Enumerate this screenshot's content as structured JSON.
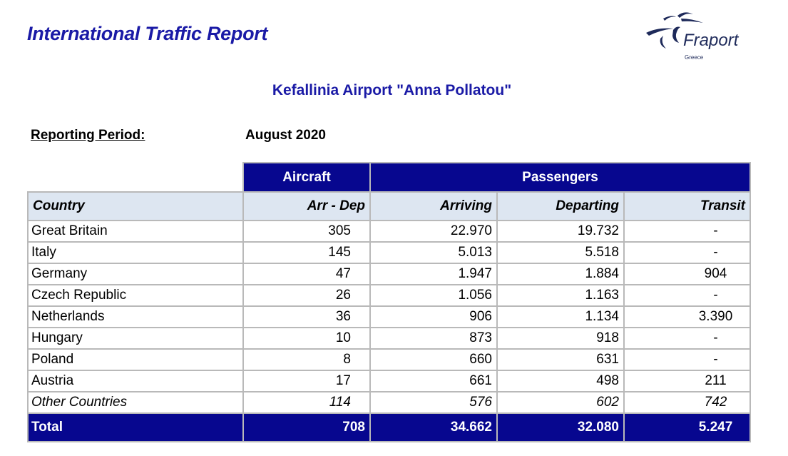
{
  "report": {
    "title": "International Traffic Report",
    "airport": "Kefallinia Airport \"Anna Pollatou\"",
    "period_label": "Reporting Period:",
    "period_value": "August 2020"
  },
  "logo": {
    "name": "Fraport",
    "sub": "Greece",
    "colors": {
      "navy": "#1e2a5a"
    }
  },
  "table": {
    "groups": {
      "aircraft": "Aircraft",
      "passengers": "Passengers"
    },
    "headers": {
      "country": "Country",
      "arr_dep": "Arr - Dep",
      "arriving": "Arriving",
      "departing": "Departing",
      "transit": "Transit"
    },
    "rows": [
      {
        "country": "Great Britain",
        "arr_dep": "305",
        "arriving": "22.970",
        "departing": "19.732",
        "transit": "-"
      },
      {
        "country": "Italy",
        "arr_dep": "145",
        "arriving": "5.013",
        "departing": "5.518",
        "transit": "-"
      },
      {
        "country": "Germany",
        "arr_dep": "47",
        "arriving": "1.947",
        "departing": "1.884",
        "transit": "904"
      },
      {
        "country": "Czech Republic",
        "arr_dep": "26",
        "arriving": "1.056",
        "departing": "1.163",
        "transit": "-"
      },
      {
        "country": "Netherlands",
        "arr_dep": "36",
        "arriving": "906",
        "departing": "1.134",
        "transit": "3.390"
      },
      {
        "country": "Hungary",
        "arr_dep": "10",
        "arriving": "873",
        "departing": "918",
        "transit": "-"
      },
      {
        "country": "Poland",
        "arr_dep": "8",
        "arriving": "660",
        "departing": "631",
        "transit": "-"
      },
      {
        "country": "Austria",
        "arr_dep": "17",
        "arriving": "661",
        "departing": "498",
        "transit": "211"
      }
    ],
    "other": {
      "country": "Other Countries",
      "arr_dep": "114",
      "arriving": "576",
      "departing": "602",
      "transit": "742"
    },
    "total": {
      "country": "Total",
      "arr_dep": "708",
      "arriving": "34.662",
      "departing": "32.080",
      "transit": "5.247"
    }
  },
  "colors": {
    "title_blue": "#1a1aa6",
    "header_navy": "#07078f",
    "header_light": "#dde6f1"
  }
}
